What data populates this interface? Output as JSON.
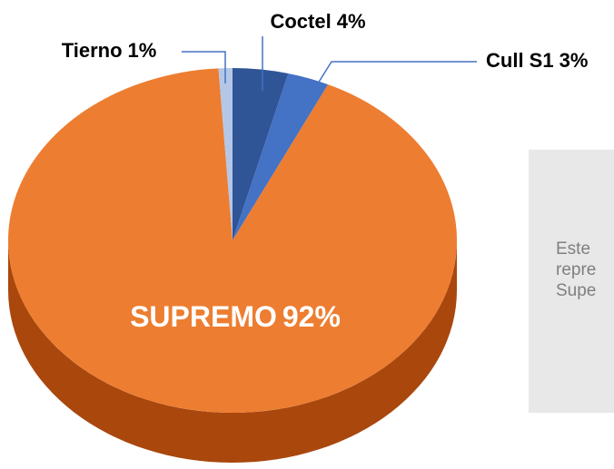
{
  "chart_data": {
    "type": "pie3d",
    "categories": [
      "Coctel",
      "Cull S1",
      "SUPREMO",
      "Tierno"
    ],
    "values": [
      4,
      3,
      92,
      1
    ],
    "value_labels": [
      "4%",
      "3%",
      "92%",
      "1%"
    ],
    "colors": [
      "#2f5597",
      "#4472c4",
      "#ed7d31",
      "#b4c7e7"
    ],
    "side_color": "#a9470d"
  },
  "note": {
    "lines": [
      "Este",
      "repre",
      "Supe"
    ]
  }
}
